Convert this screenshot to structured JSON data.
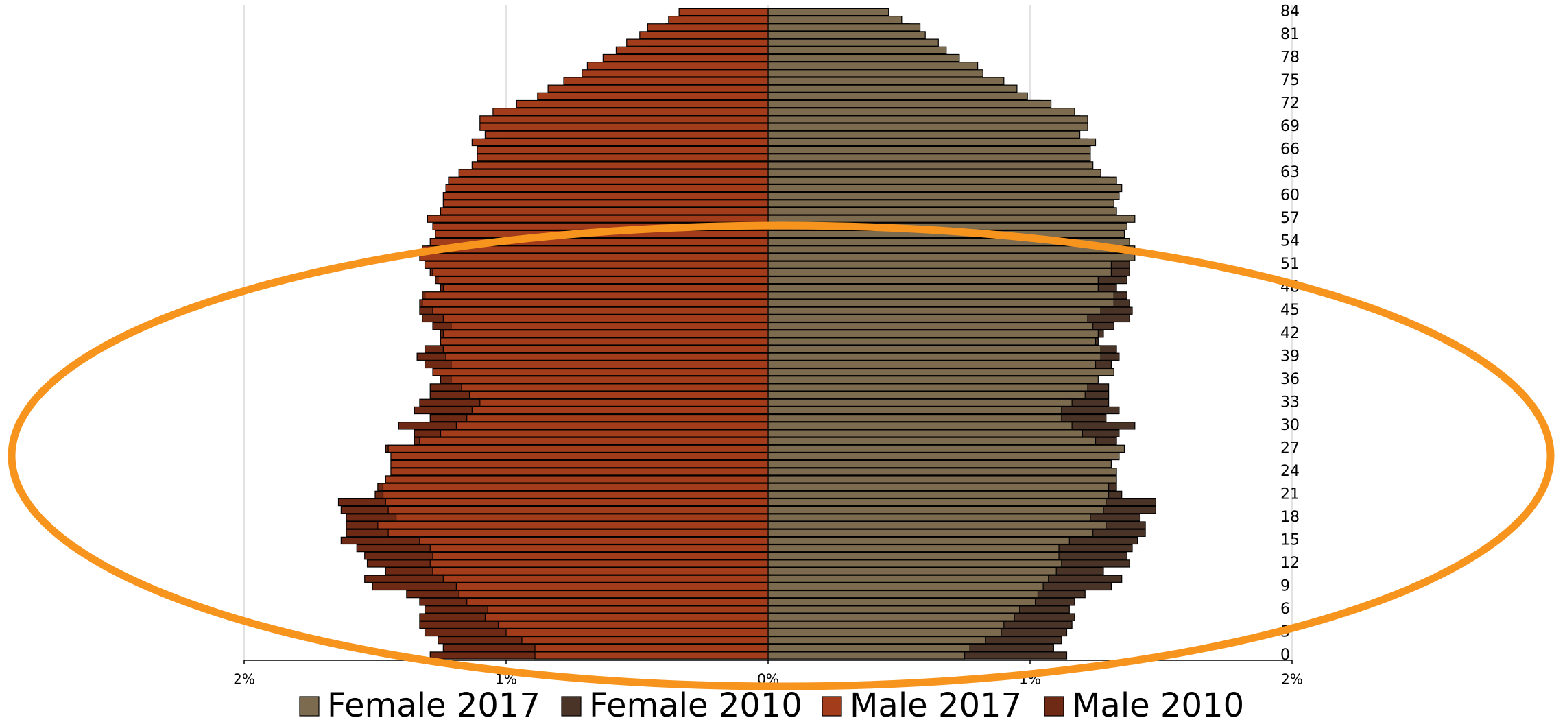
{
  "chart_data": {
    "type": "bar",
    "orientation": "horizontal",
    "categories": [
      0,
      null,
      null,
      3,
      null,
      null,
      6,
      null,
      null,
      9,
      null,
      null,
      12,
      null,
      null,
      15,
      null,
      null,
      18,
      null,
      null,
      21,
      null,
      null,
      24,
      null,
      null,
      27,
      null,
      null,
      30,
      null,
      null,
      33,
      null,
      null,
      36,
      null,
      null,
      39,
      null,
      null,
      42,
      null,
      null,
      45,
      null,
      null,
      48,
      null,
      null,
      51,
      null,
      null,
      54,
      null,
      null,
      57,
      null,
      null,
      60,
      null,
      null,
      63,
      null,
      null,
      66,
      null,
      null,
      69,
      null,
      null,
      72,
      null,
      null,
      75,
      null,
      null,
      78,
      null,
      null,
      81,
      null,
      null,
      84
    ],
    "series": [
      {
        "name": "Female 2017",
        "color": "#7d6b4f",
        "values": [
          0.75,
          0.77,
          0.83,
          0.89,
          0.9,
          0.94,
          0.96,
          1.02,
          1.03,
          1.05,
          1.07,
          1.1,
          1.12,
          1.11,
          1.11,
          1.15,
          1.24,
          1.29,
          1.23,
          1.28,
          1.29,
          1.3,
          1.3,
          1.33,
          1.33,
          1.31,
          1.34,
          1.36,
          1.25,
          1.2,
          1.16,
          1.12,
          1.12,
          1.16,
          1.21,
          1.22,
          1.26,
          1.32,
          1.25,
          1.27,
          1.27,
          1.25,
          1.26,
          1.24,
          1.22,
          1.27,
          1.32,
          1.32,
          1.26,
          1.26,
          1.31,
          1.31,
          1.4,
          1.4,
          1.38,
          1.36,
          1.37,
          1.4,
          1.33,
          1.32,
          1.34,
          1.35,
          1.33,
          1.27,
          1.24,
          1.23,
          1.23,
          1.25,
          1.19,
          1.22,
          1.22,
          1.17,
          1.08,
          0.99,
          0.95,
          0.9,
          0.82,
          0.8,
          0.73,
          0.68,
          0.65,
          0.6,
          0.58,
          0.51,
          0.46
        ]
      },
      {
        "name": "Female 2010",
        "color": "#4a3428",
        "values": [
          1.14,
          1.09,
          1.12,
          1.14,
          1.16,
          1.17,
          1.15,
          1.17,
          1.21,
          1.31,
          1.35,
          1.28,
          1.38,
          1.37,
          1.39,
          1.41,
          1.44,
          1.44,
          1.42,
          1.48,
          1.48,
          1.35,
          1.33,
          1.31,
          1.31,
          1.29,
          1.31,
          1.33,
          1.33,
          1.34,
          1.4,
          1.29,
          1.34,
          1.3,
          1.3,
          1.3,
          1.24,
          1.3,
          1.31,
          1.34,
          1.33,
          1.26,
          1.28,
          1.32,
          1.38,
          1.39,
          1.38,
          1.37,
          1.33,
          1.37,
          1.38,
          1.38,
          1.36,
          1.37,
          1.35,
          1.33,
          1.34,
          1.36,
          1.3,
          1.29,
          1.31,
          1.32,
          1.3,
          1.24,
          1.21,
          1.2,
          1.2,
          1.22,
          1.16,
          1.19,
          1.19,
          1.14,
          1.04,
          0.95,
          0.91,
          0.86,
          0.78,
          0.76,
          0.69,
          0.64,
          0.61,
          0.56,
          0.54,
          0.47,
          0.42
        ]
      },
      {
        "name": "Male 2017",
        "color": "#a33c1a",
        "values": [
          -0.89,
          -0.89,
          -0.94,
          -1.0,
          -1.03,
          -1.08,
          -1.07,
          -1.15,
          -1.18,
          -1.19,
          -1.24,
          -1.28,
          -1.29,
          -1.28,
          -1.29,
          -1.33,
          -1.45,
          -1.49,
          -1.42,
          -1.45,
          -1.46,
          -1.47,
          -1.47,
          -1.46,
          -1.44,
          -1.44,
          -1.44,
          -1.45,
          -1.33,
          -1.25,
          -1.19,
          -1.15,
          -1.13,
          -1.1,
          -1.14,
          -1.17,
          -1.21,
          -1.28,
          -1.21,
          -1.23,
          -1.24,
          -1.25,
          -1.24,
          -1.21,
          -1.24,
          -1.28,
          -1.32,
          -1.31,
          -1.24,
          -1.26,
          -1.28,
          -1.31,
          -1.33,
          -1.32,
          -1.29,
          -1.27,
          -1.28,
          -1.3,
          -1.25,
          -1.24,
          -1.24,
          -1.23,
          -1.22,
          -1.18,
          -1.13,
          -1.11,
          -1.11,
          -1.13,
          -1.08,
          -1.1,
          -1.1,
          -1.05,
          -0.96,
          -0.88,
          -0.84,
          -0.78,
          -0.71,
          -0.69,
          -0.63,
          -0.58,
          -0.54,
          -0.49,
          -0.46,
          -0.38,
          -0.34
        ]
      },
      {
        "name": "Male 2010",
        "color": "#6e2a14",
        "values": [
          -1.29,
          -1.24,
          -1.26,
          -1.31,
          -1.33,
          -1.33,
          -1.31,
          -1.33,
          -1.38,
          -1.51,
          -1.54,
          -1.46,
          -1.53,
          -1.54,
          -1.57,
          -1.63,
          -1.61,
          -1.61,
          -1.61,
          -1.63,
          -1.64,
          -1.5,
          -1.49,
          -1.44,
          -1.42,
          -1.42,
          -1.42,
          -1.46,
          -1.35,
          -1.35,
          -1.41,
          -1.29,
          -1.35,
          -1.33,
          -1.29,
          -1.29,
          -1.25,
          -1.27,
          -1.31,
          -1.34,
          -1.31,
          -1.25,
          -1.25,
          -1.28,
          -1.32,
          -1.33,
          -1.33,
          -1.32,
          -1.25,
          -1.27,
          -1.29,
          -1.31,
          -1.3,
          -1.3,
          -1.27,
          -1.25,
          -1.26,
          -1.27,
          -1.22,
          -1.21,
          -1.22,
          -1.2,
          -1.18,
          -1.12,
          -1.09,
          -1.07,
          -1.06,
          -1.09,
          -1.03,
          -1.06,
          -1.05,
          -0.99,
          -0.88,
          -0.8,
          -0.76,
          -0.7,
          -0.62,
          -0.6,
          -0.53,
          -0.49,
          -0.46,
          -0.41,
          -0.39,
          -0.32,
          -0.28
        ]
      }
    ],
    "xlim": [
      -2,
      2
    ],
    "xticks": [
      {
        "value": -2,
        "label": "2%"
      },
      {
        "value": -1,
        "label": "1%"
      },
      {
        "value": 0,
        "label": "0%"
      },
      {
        "value": 1,
        "label": "1%"
      },
      {
        "value": 2,
        "label": "2%"
      }
    ],
    "grid": true,
    "legend": "bottom"
  }
}
